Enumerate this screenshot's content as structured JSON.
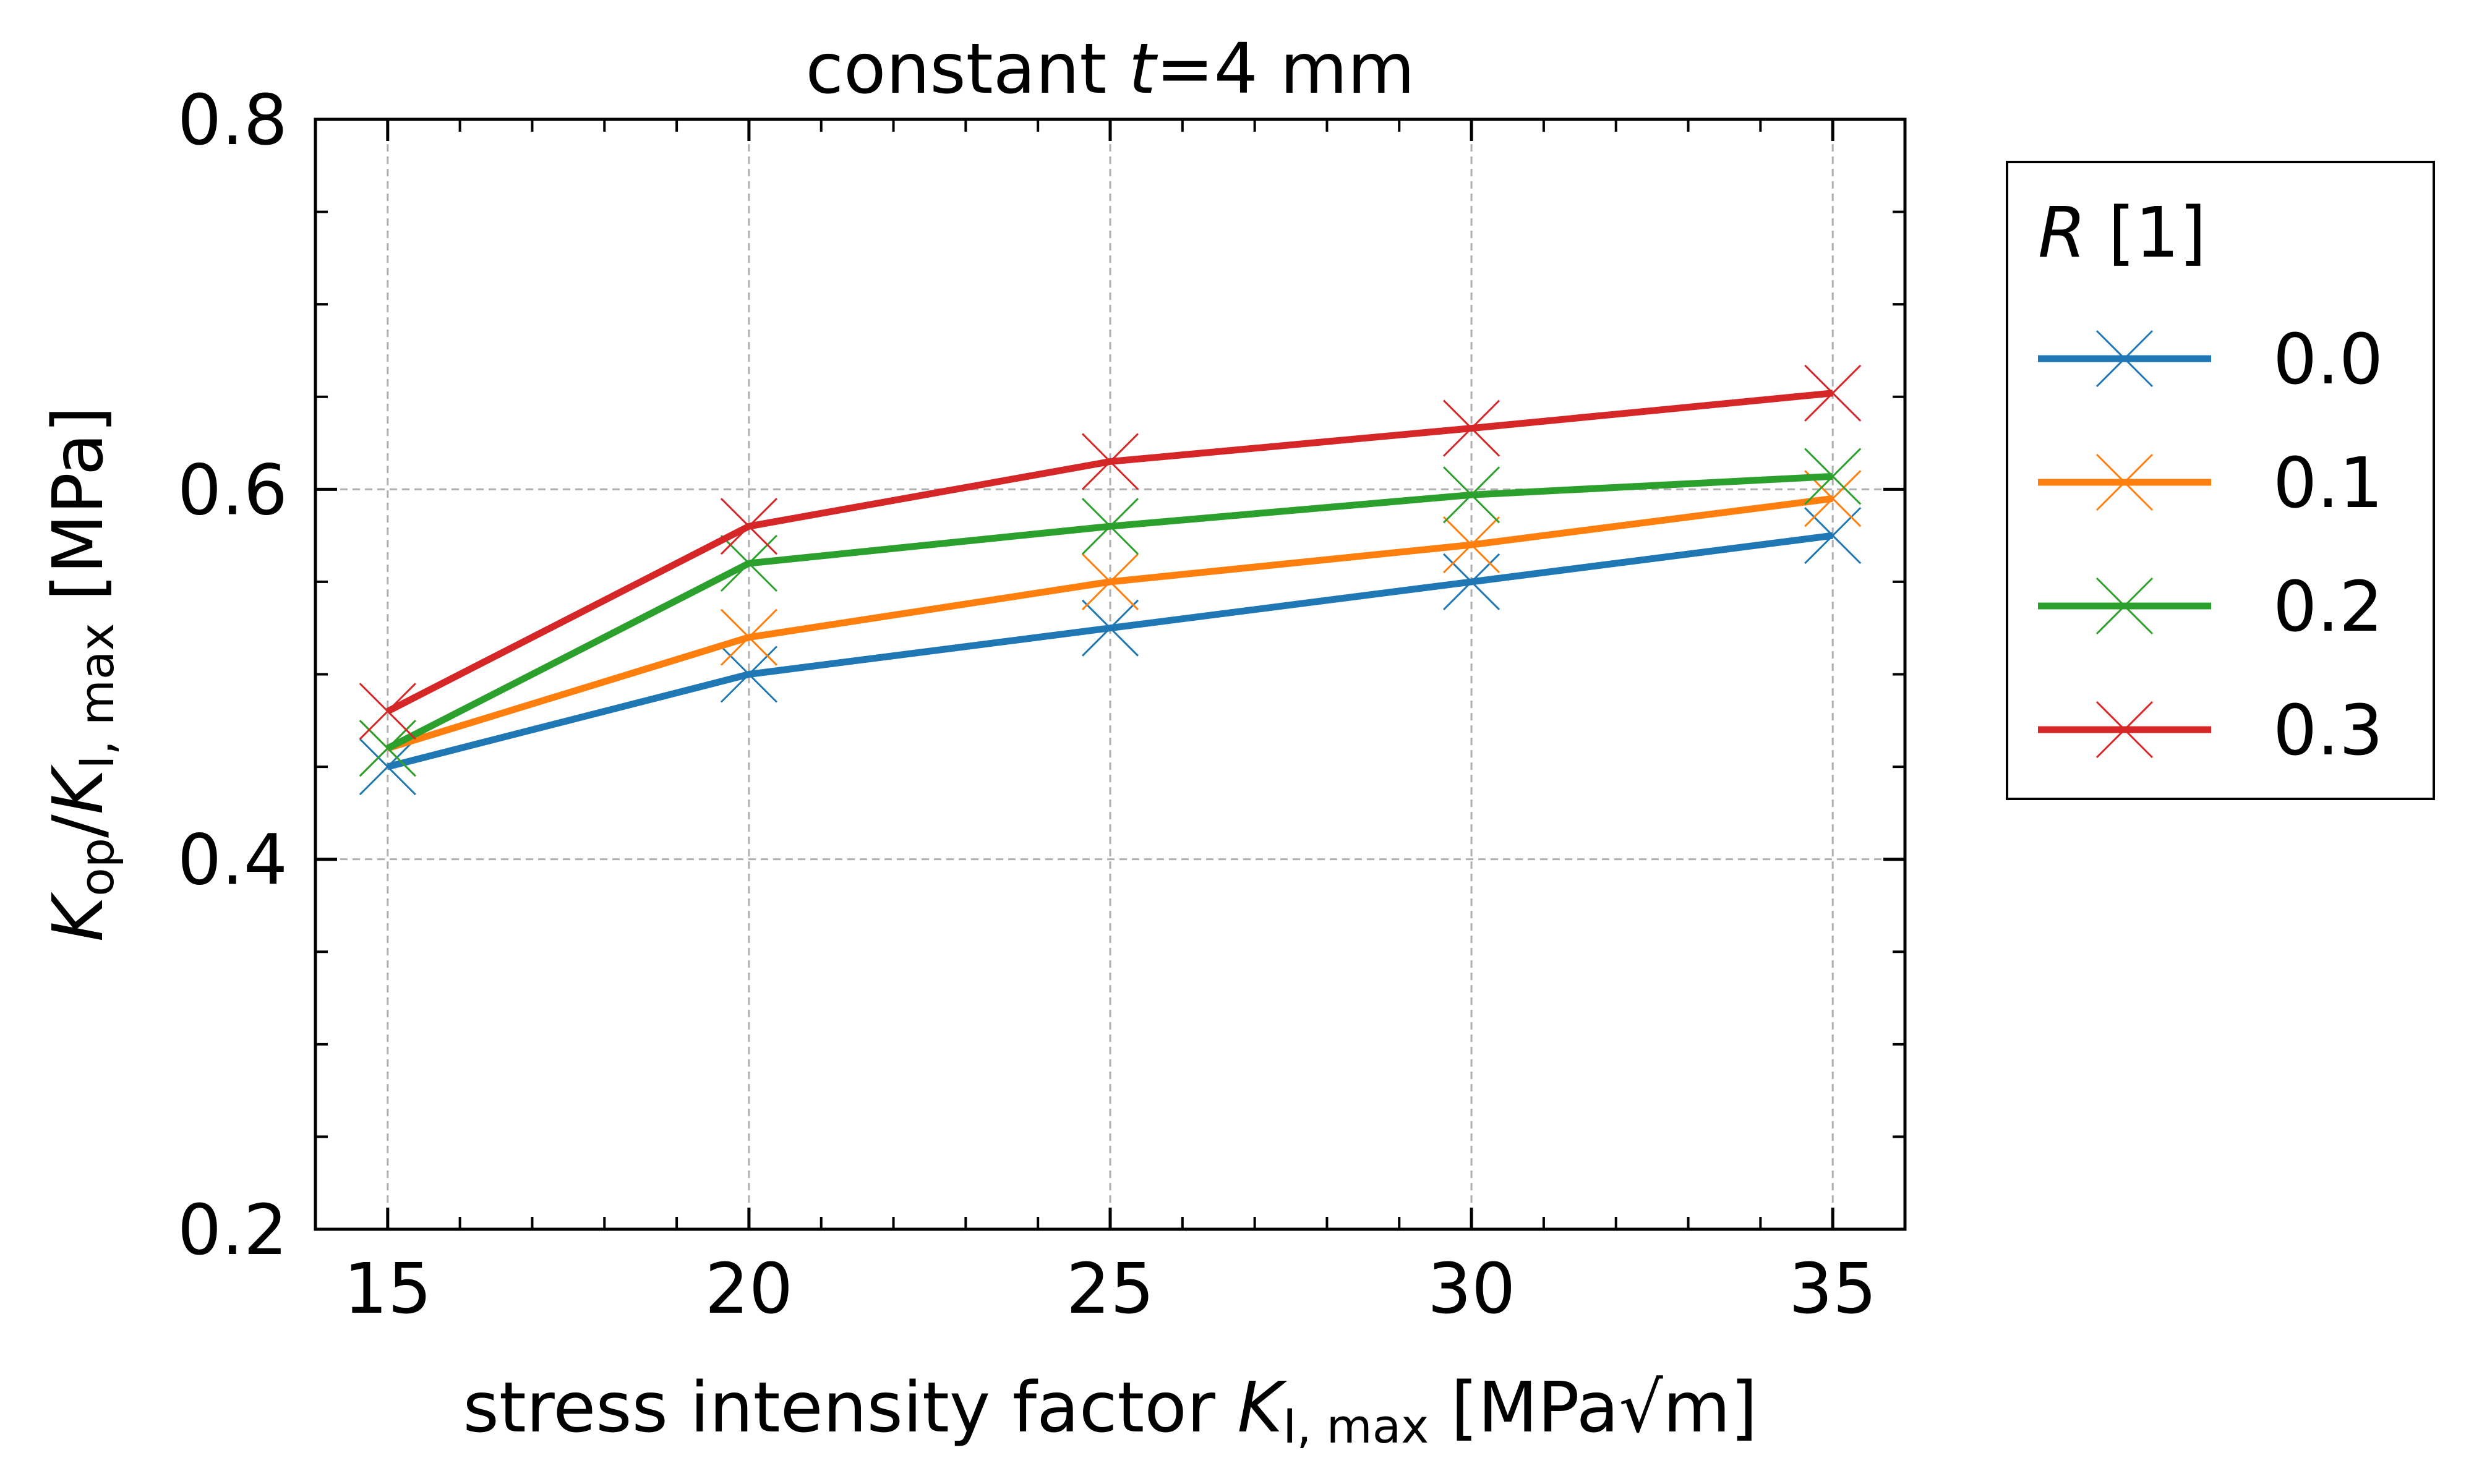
{
  "chart_data": {
    "type": "line",
    "title": {
      "pre": "constant ",
      "var": "t",
      "post": "=4 mm"
    },
    "xlabel": {
      "pre": "stress intensity factor ",
      "var": "K",
      "sub": "I, max",
      "post": " [MPa√m]"
    },
    "ylabel": {
      "var1": "K",
      "sub1": "op",
      "mid": "/",
      "var2": "K",
      "sub2": "I, max",
      "post": " [MPa]"
    },
    "x": [
      15,
      20,
      25,
      30,
      35
    ],
    "xlim": [
      14,
      36
    ],
    "ylim": [
      0.2,
      0.8
    ],
    "xticks": [
      "15",
      "20",
      "25",
      "30",
      "35"
    ],
    "yticks": [
      "0.2",
      "0.4",
      "0.6",
      "0.8"
    ],
    "grid": true,
    "marker": "x",
    "legend": {
      "title_var": "R",
      "title_post": " [1]",
      "placement": "outside right"
    },
    "series": [
      {
        "name": "0.0",
        "color": "#1f77b4",
        "values": [
          0.45,
          0.5,
          0.525,
          0.55,
          0.575
        ]
      },
      {
        "name": "0.1",
        "color": "#ff7f0e",
        "values": [
          0.46,
          0.52,
          0.55,
          0.57,
          0.595
        ]
      },
      {
        "name": "0.2",
        "color": "#2ca02c",
        "values": [
          0.46,
          0.56,
          0.58,
          0.597,
          0.607
        ]
      },
      {
        "name": "0.3",
        "color": "#d62728",
        "values": [
          0.48,
          0.58,
          0.615,
          0.633,
          0.652
        ]
      }
    ]
  }
}
